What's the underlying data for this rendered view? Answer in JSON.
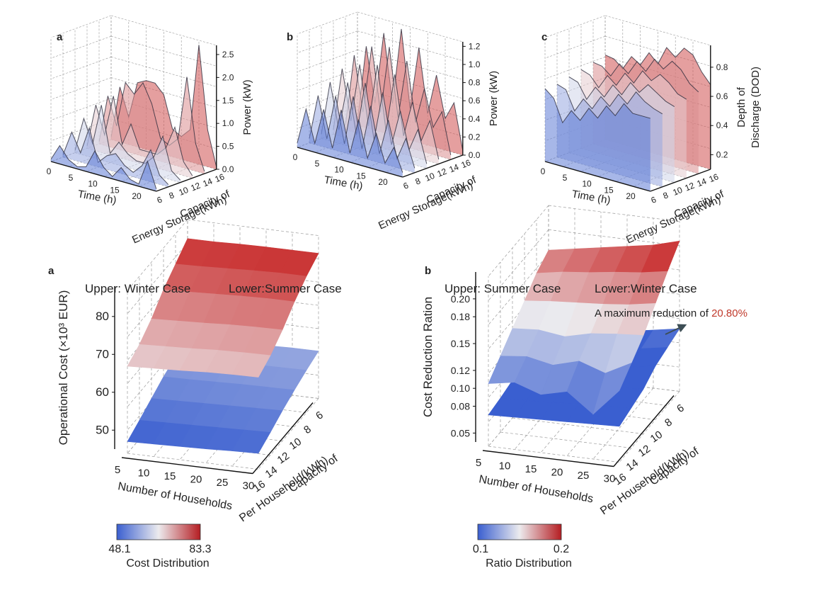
{
  "colors": {
    "cold": "#3a5fd0",
    "mid": "#ecebee",
    "warm": "#c82a2a",
    "axis": "#222222",
    "grid": "#9a9a9a",
    "annot": "#c0392b",
    "arrow": "#3d4e55"
  },
  "top_panels": [
    {
      "label": "a",
      "xlabel": "Time (h)",
      "xticks": [
        "0",
        "5",
        "10",
        "15",
        "20"
      ],
      "ylabel": "Capacity of\nEnergy Storage(kWh)",
      "yticks": [
        "6",
        "8",
        "10",
        "12",
        "14",
        "16"
      ],
      "zlabel": "Power (kW)",
      "zticks": [
        "0.0",
        "0.5",
        "1.0",
        "1.5",
        "2.0",
        "2.5"
      ]
    },
    {
      "label": "b",
      "xlabel": "Time (h)",
      "xticks": [
        "0",
        "5",
        "10",
        "15",
        "20"
      ],
      "ylabel": "Capacity of\nEnergy Storage(kWh)",
      "yticks": [
        "6",
        "8",
        "10",
        "12",
        "14",
        "16"
      ],
      "zlabel": "Power (kW)",
      "zticks": [
        "0.0",
        "0.2",
        "0.4",
        "0.6",
        "0.8",
        "1.0",
        "1.2"
      ]
    },
    {
      "label": "c",
      "xlabel": "Time (h)",
      "xticks": [
        "0",
        "5",
        "10",
        "15",
        "20"
      ],
      "ylabel": "Capacity of\nEnergy Storage(kWh)",
      "yticks": [
        "6",
        "8",
        "10",
        "12",
        "14",
        "16"
      ],
      "zlabel": "Depth of\nDischarge (DOD)",
      "zticks": [
        "0.2",
        "0.4",
        "0.6",
        "0.8"
      ]
    }
  ],
  "bottom_panels": [
    {
      "label": "a",
      "legend_left": "Upper: Winter Case",
      "legend_right": "Lower:Summer Case",
      "zlabel": "Operational Cost (×10³ EUR)",
      "zticks": [
        "50",
        "60",
        "70",
        "80"
      ],
      "xlabel": "Number of Households",
      "xticks": [
        "5",
        "10",
        "15",
        "20",
        "25",
        "30"
      ],
      "ylabel": "Capacity of\nPer Household(kWh)",
      "yticks": [
        "16",
        "14",
        "12",
        "10",
        "8",
        "6"
      ],
      "cbar_min": "48.1",
      "cbar_max": "83.3",
      "cbar_label": "Cost Distribution"
    },
    {
      "label": "b",
      "legend_left": "Upper: Summer Case",
      "legend_right": "Lower:Winter Case",
      "zlabel": "Cost Reduction Ration",
      "zticks": [
        "0.05",
        "0.08",
        "0.10",
        "0.12",
        "0.15",
        "0.18",
        "0.20"
      ],
      "xlabel": "Number of Households",
      "xticks": [
        "5",
        "10",
        "15",
        "20",
        "25",
        "30"
      ],
      "ylabel": "Capacity of\nPer Household(kWh)",
      "yticks": [
        "16",
        "14",
        "12",
        "10",
        "8",
        "6"
      ],
      "cbar_min": "0.1",
      "cbar_max": "0.2",
      "cbar_label": "Ratio Distribution",
      "annotation": "A maximum reduction of ",
      "annotation_value": "20.80%"
    }
  ],
  "chart_data": [
    {
      "type": "area",
      "title": "a",
      "xlabel": "Time (h)",
      "ylabel": "Capacity of Energy Storage(kWh)",
      "zlabel": "Power (kW)",
      "x": [
        0,
        2,
        4,
        6,
        8,
        10,
        12,
        14,
        16,
        18,
        20,
        22,
        24
      ],
      "capacities": [
        6,
        8,
        10,
        12,
        14,
        16
      ],
      "zlim": [
        0,
        2.7
      ],
      "series": [
        {
          "name": "6 kWh",
          "values": [
            0.05,
            0.4,
            0.15,
            0.05,
            0.1,
            0.5,
            0.2,
            0.05,
            0.3,
            0.1,
            0.05,
            0.6,
            0.05
          ]
        },
        {
          "name": "8 kWh",
          "values": [
            0.05,
            0.6,
            0.2,
            0.8,
            0.1,
            0.3,
            0.4,
            0.2,
            0.1,
            0.3,
            0.7,
            0.2,
            0.05
          ]
        },
        {
          "name": "10 kWh",
          "values": [
            0.05,
            0.8,
            0.3,
            1.2,
            0.2,
            0.5,
            0.3,
            0.2,
            0.2,
            0.4,
            0.9,
            0.2,
            0.05
          ]
        },
        {
          "name": "12 kWh",
          "values": [
            0.05,
            1.0,
            0.4,
            1.3,
            0.3,
            0.8,
            0.3,
            0.3,
            0.3,
            0.5,
            1.0,
            0.3,
            0.05
          ]
        },
        {
          "name": "14 kWh",
          "values": [
            0.05,
            1.1,
            0.5,
            1.5,
            1.3,
            1.6,
            1.2,
            0.5,
            0.4,
            0.6,
            2.0,
            0.6,
            0.05
          ]
        },
        {
          "name": "16 kWh",
          "values": [
            0.05,
            1.2,
            0.6,
            1.4,
            1.5,
            1.5,
            1.3,
            0.6,
            0.5,
            0.7,
            2.6,
            0.8,
            0.05
          ]
        }
      ]
    },
    {
      "type": "area",
      "title": "b",
      "xlabel": "Time (h)",
      "ylabel": "Capacity of Energy Storage(kWh)",
      "zlabel": "Power (kW)",
      "x": [
        0,
        2,
        4,
        6,
        8,
        10,
        12,
        14,
        16,
        18,
        20,
        22,
        24
      ],
      "capacities": [
        6,
        8,
        10,
        12,
        14,
        16
      ],
      "zlim": [
        0,
        1.25
      ],
      "series": [
        {
          "name": "6 kWh",
          "values": [
            0.05,
            0.45,
            0.1,
            0.5,
            0.1,
            0.55,
            0.1,
            0.5,
            0.1,
            0.4,
            0.1,
            0.3,
            0.05
          ]
        },
        {
          "name": "8 kWh",
          "values": [
            0.05,
            0.55,
            0.1,
            0.6,
            0.1,
            0.65,
            0.1,
            0.6,
            0.1,
            0.5,
            0.1,
            0.35,
            0.05
          ]
        },
        {
          "name": "10 kWh",
          "values": [
            0.05,
            0.65,
            0.15,
            0.7,
            0.15,
            0.75,
            0.15,
            0.7,
            0.15,
            0.55,
            0.15,
            0.4,
            0.05
          ]
        },
        {
          "name": "12 kWh",
          "values": [
            0.05,
            0.75,
            0.2,
            0.85,
            0.2,
            0.9,
            0.2,
            0.85,
            0.2,
            0.6,
            0.2,
            0.45,
            0.05
          ]
        },
        {
          "name": "14 kWh",
          "values": [
            0.05,
            0.85,
            0.25,
            1.0,
            0.3,
            1.05,
            0.3,
            0.95,
            0.3,
            0.7,
            0.3,
            0.5,
            0.05
          ]
        },
        {
          "name": "16 kWh",
          "values": [
            0.05,
            0.9,
            0.3,
            1.1,
            0.35,
            1.2,
            0.35,
            1.05,
            0.35,
            0.8,
            0.35,
            0.55,
            0.05
          ]
        }
      ]
    },
    {
      "type": "area",
      "title": "c",
      "xlabel": "Time (h)",
      "ylabel": "Capacity of Energy Storage(kWh)",
      "zlabel": "Depth of Discharge (DOD)",
      "x": [
        0,
        2,
        4,
        6,
        8,
        10,
        12,
        14,
        16,
        18,
        20,
        22,
        24
      ],
      "capacities": [
        6,
        8,
        10,
        12,
        14,
        16
      ],
      "zlim": [
        0.1,
        0.95
      ],
      "series": [
        {
          "name": "6 kWh",
          "values": [
            0.6,
            0.55,
            0.4,
            0.5,
            0.45,
            0.55,
            0.5,
            0.6,
            0.55,
            0.65,
            0.6,
            0.6,
            0.6
          ]
        },
        {
          "name": "8 kWh",
          "values": [
            0.6,
            0.58,
            0.45,
            0.55,
            0.5,
            0.6,
            0.55,
            0.65,
            0.6,
            0.7,
            0.65,
            0.62,
            0.6
          ]
        },
        {
          "name": "10 kWh",
          "values": [
            0.62,
            0.6,
            0.5,
            0.6,
            0.55,
            0.65,
            0.6,
            0.7,
            0.65,
            0.72,
            0.68,
            0.64,
            0.62
          ]
        },
        {
          "name": "12 kWh",
          "values": [
            0.64,
            0.62,
            0.55,
            0.65,
            0.6,
            0.7,
            0.65,
            0.75,
            0.7,
            0.76,
            0.72,
            0.66,
            0.64
          ]
        },
        {
          "name": "14 kWh",
          "values": [
            0.66,
            0.65,
            0.6,
            0.7,
            0.65,
            0.75,
            0.7,
            0.8,
            0.75,
            0.82,
            0.78,
            0.7,
            0.66
          ]
        },
        {
          "name": "16 kWh",
          "values": [
            0.68,
            0.67,
            0.62,
            0.72,
            0.68,
            0.78,
            0.72,
            0.85,
            0.8,
            0.88,
            0.85,
            0.75,
            0.68
          ]
        }
      ]
    },
    {
      "type": "surface",
      "title": "a",
      "xlabel": "Number of Households",
      "ylabel": "Capacity of Per Household(kWh)",
      "zlabel": "Operational Cost (×10³ EUR)",
      "x": [
        5,
        10,
        15,
        20,
        25,
        30
      ],
      "y": [
        6,
        8,
        10,
        12,
        14,
        16
      ],
      "zlim": [
        45,
        88
      ],
      "color_range": [
        48.1,
        83.3
      ],
      "series": [
        {
          "name": "Upper: Winter Case",
          "z": [
            [
              83,
              83,
              83.2,
              83.3,
              83.3,
              83.3
            ],
            [
              80,
              80.2,
              80.5,
              80.8,
              81,
              81
            ],
            [
              77,
              77.2,
              77.5,
              77.8,
              78,
              78
            ],
            [
              73,
              73.3,
              73.6,
              74,
              74.2,
              74.3
            ],
            [
              70,
              70.3,
              70.6,
              71,
              71.2,
              71.3
            ],
            [
              68,
              68.3,
              68.6,
              69,
              69.2,
              69.3
            ]
          ]
        },
        {
          "name": "Lower:Summer Case",
          "z": [
            [
              57,
              57,
              57.2,
              57.3,
              57.5,
              57.5
            ],
            [
              55.5,
              55.6,
              55.8,
              56,
              56.1,
              56.2
            ],
            [
              54,
              54.1,
              54.3,
              54.5,
              54.6,
              54.7
            ],
            [
              52,
              52.2,
              52.4,
              52.6,
              52.8,
              53
            ],
            [
              50,
              50.2,
              50.4,
              50.6,
              50.8,
              51
            ],
            [
              48.1,
              48.3,
              48.5,
              48.7,
              49,
              49.2
            ]
          ]
        }
      ]
    },
    {
      "type": "surface",
      "title": "b",
      "xlabel": "Number of Households",
      "ylabel": "Capacity of Per Household(kWh)",
      "zlabel": "Cost Reduction Ration",
      "x": [
        5,
        10,
        15,
        20,
        25,
        30
      ],
      "y": [
        6,
        8,
        10,
        12,
        14,
        16
      ],
      "zlim": [
        0.04,
        0.23
      ],
      "color_range": [
        0.1,
        0.2
      ],
      "annotation": "A maximum reduction of 20.80%",
      "series": [
        {
          "name": "Upper: Summer Case",
          "z": [
            [
              0.18,
              0.185,
              0.19,
              0.195,
              0.2,
              0.208
            ],
            [
              0.17,
              0.175,
              0.178,
              0.182,
              0.185,
              0.19
            ],
            [
              0.155,
              0.158,
              0.16,
              0.162,
              0.165,
              0.17
            ],
            [
              0.14,
              0.142,
              0.138,
              0.145,
              0.148,
              0.15
            ],
            [
              0.125,
              0.128,
              0.122,
              0.13,
              0.12,
              0.135
            ],
            [
              0.11,
              0.115,
              0.105,
              0.112,
              0.09,
              0.12
            ]
          ]
        },
        {
          "name": "Lower:Winter Case",
          "z": [
            [
              0.09,
              0.092,
              0.095,
              0.1,
              0.105,
              0.11
            ],
            [
              0.088,
              0.09,
              0.092,
              0.095,
              0.1,
              0.105
            ],
            [
              0.085,
              0.087,
              0.088,
              0.09,
              0.095,
              0.1
            ],
            [
              0.082,
              0.083,
              0.084,
              0.086,
              0.088,
              0.09
            ],
            [
              0.078,
              0.079,
              0.08,
              0.082,
              0.083,
              0.085
            ],
            [
              0.075,
              0.076,
              0.077,
              0.078,
              0.079,
              0.08
            ]
          ]
        }
      ]
    }
  ]
}
